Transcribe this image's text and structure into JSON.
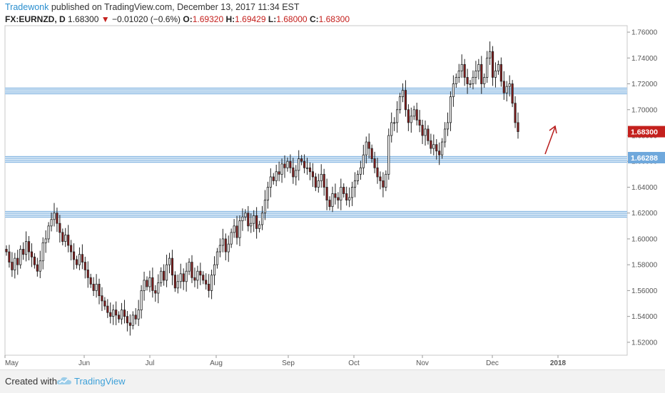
{
  "header": {
    "author": "Tradewonk",
    "published_text": " published on TradingView.com, December 13, 2017 11:34 EST",
    "symbol": "FX:EURNZD, D",
    "last": "1.68300",
    "change": "−0.01020 (−0.6%)",
    "o_label": "O:",
    "o_value": "1.69320",
    "h_label": "H:",
    "h_value": "1.69429",
    "l_label": "L:",
    "l_value": "1.68000",
    "c_label": "C:",
    "c_value": "1.68300"
  },
  "footer": {
    "created_with": "Created with",
    "brand": "TradingView"
  },
  "colors": {
    "up": "#ffffff",
    "down": "#8b1a1a",
    "wick": "#222222",
    "level": "#6fa8dc",
    "price_tag": "#c4201d",
    "level_tag": "#6fa8dc",
    "arrow": "#b81c1c"
  },
  "chart_data": {
    "type": "candlestick",
    "symbol": "FX:EURNZD",
    "timeframe": "D",
    "ylim": [
      1.51,
      1.765
    ],
    "y_ticks": [
      "1.76000",
      "1.74000",
      "1.72000",
      "1.70000",
      "1.68000",
      "1.66000",
      "1.64000",
      "1.62000",
      "1.60000",
      "1.58000",
      "1.56000",
      "1.54000",
      "1.52000"
    ],
    "x_ticks": [
      "May",
      "Jun",
      "Jul",
      "Aug",
      "Sep",
      "Oct",
      "Nov",
      "Dec",
      "2018"
    ],
    "price_label": "1.68300",
    "level_label": "1.66288",
    "horizontal_levels": [
      1.7145,
      1.6615,
      1.619
    ],
    "closes": [
      1.59,
      1.582,
      1.576,
      1.585,
      1.58,
      1.592,
      1.588,
      1.598,
      1.59,
      1.586,
      1.58,
      1.575,
      1.583,
      1.597,
      1.6,
      1.61,
      1.615,
      1.62,
      1.612,
      1.605,
      1.598,
      1.603,
      1.595,
      1.59,
      1.584,
      1.58,
      1.588,
      1.582,
      1.576,
      1.57,
      1.565,
      1.56,
      1.565,
      1.556,
      1.552,
      1.548,
      1.543,
      1.54,
      1.545,
      1.541,
      1.538,
      1.545,
      1.54,
      1.535,
      1.533,
      1.541,
      1.538,
      1.545,
      1.56,
      1.568,
      1.563,
      1.57,
      1.56,
      1.558,
      1.566,
      1.575,
      1.568,
      1.58,
      1.585,
      1.572,
      1.562,
      1.567,
      1.573,
      1.567,
      1.575,
      1.582,
      1.57,
      1.568,
      1.575,
      1.572,
      1.568,
      1.565,
      1.56,
      1.572,
      1.58,
      1.59,
      1.595,
      1.6,
      1.59,
      1.596,
      1.605,
      1.61,
      1.601,
      1.614,
      1.617,
      1.62,
      1.61,
      1.612,
      1.618,
      1.608,
      1.611,
      1.62,
      1.63,
      1.64,
      1.648,
      1.645,
      1.652,
      1.65,
      1.658,
      1.655,
      1.66,
      1.655,
      1.648,
      1.653,
      1.662,
      1.66,
      1.655,
      1.655,
      1.652,
      1.648,
      1.64,
      1.645,
      1.65,
      1.64,
      1.63,
      1.625,
      1.635,
      1.632,
      1.63,
      1.64,
      1.635,
      1.63,
      1.632,
      1.64,
      1.645,
      1.65,
      1.655,
      1.665,
      1.675,
      1.67,
      1.662,
      1.655,
      1.648,
      1.645,
      1.64,
      1.65,
      1.68,
      1.69,
      1.69,
      1.7,
      1.71,
      1.715,
      1.7,
      1.69,
      1.695,
      1.7,
      1.692,
      1.688,
      1.68,
      1.685,
      1.676,
      1.67,
      1.673,
      1.668,
      1.665,
      1.675,
      1.685,
      1.69,
      1.71,
      1.72,
      1.725,
      1.73,
      1.735,
      1.725,
      1.72,
      1.72,
      1.725,
      1.73,
      1.735,
      1.72,
      1.725,
      1.74,
      1.745,
      1.725,
      1.73,
      1.735,
      1.722,
      1.713,
      1.718,
      1.72,
      1.705,
      1.69,
      1.683
    ]
  }
}
